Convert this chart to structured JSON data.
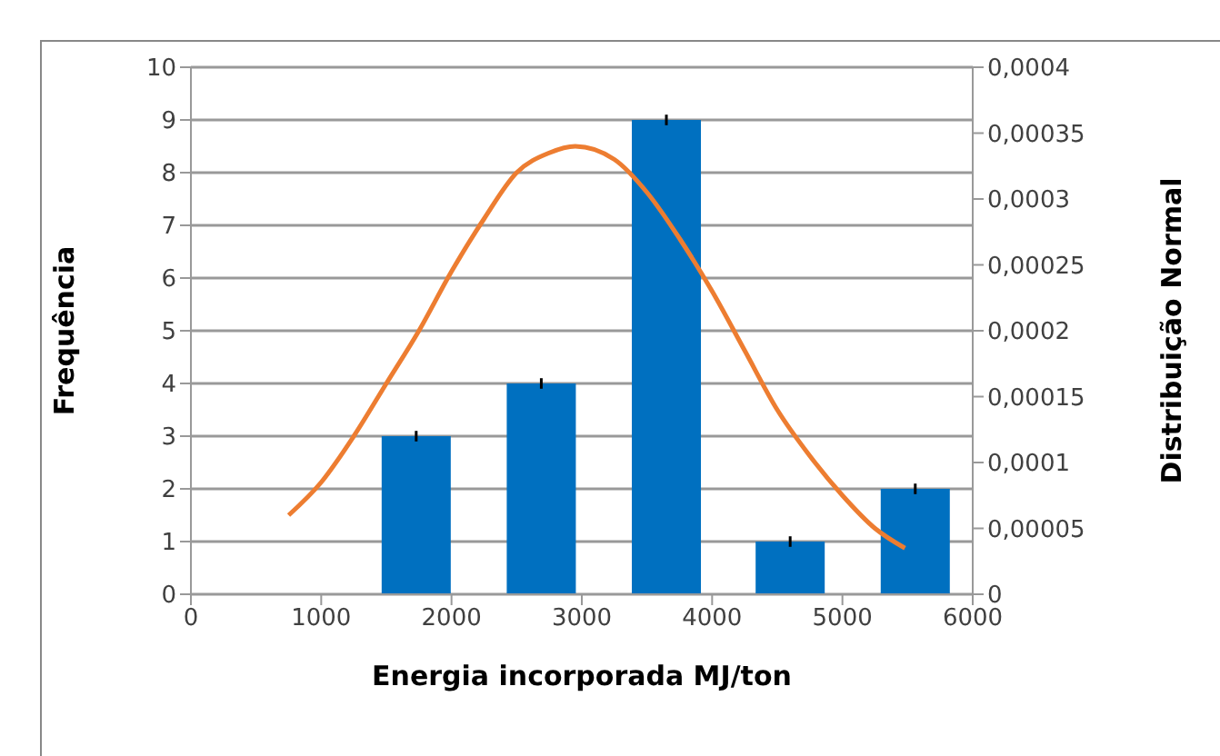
{
  "chart_data": {
    "type": "bar",
    "xlabel": "Energia incorporada MJ/ton",
    "ylabel": "Frequência",
    "y2label": "Distribuição Normal",
    "xlim": [
      0,
      6000
    ],
    "xticks": [
      0,
      1000,
      2000,
      3000,
      4000,
      5000,
      6000
    ],
    "ylim": [
      0,
      10
    ],
    "yticks": [
      0,
      1,
      2,
      3,
      4,
      5,
      6,
      7,
      8,
      9,
      10
    ],
    "y2lim": [
      0,
      0.0004
    ],
    "y2ticks": [
      {
        "value": 0,
        "label": "0"
      },
      {
        "value": 5e-05,
        "label": "0,00005"
      },
      {
        "value": 0.0001,
        "label": "0,0001"
      },
      {
        "value": 0.00015,
        "label": "0,00015"
      },
      {
        "value": 0.0002,
        "label": "0,0002"
      },
      {
        "value": 0.00025,
        "label": "0,00025"
      },
      {
        "value": 0.0003,
        "label": "0,0003"
      },
      {
        "value": 0.00035,
        "label": "0,00035"
      },
      {
        "value": 0.0004,
        "label": "0,0004"
      }
    ],
    "grid": "y",
    "marker": "none",
    "line_style": "solid",
    "series": [
      {
        "color": "#0070c0",
        "x": [
          1730,
          2690,
          3650,
          4600,
          5560
        ],
        "values": [
          3,
          4,
          9,
          1,
          2
        ],
        "errors": [
          0.1,
          0.1,
          0.1,
          0.1,
          0.1
        ]
      },
      {
        "type": "line",
        "axis": "y2",
        "color": "#ed7d31",
        "x": [
          750,
          1000,
          1250,
          1500,
          1750,
          2000,
          2250,
          2500,
          2750,
          2950,
          3250,
          3500,
          3750,
          4000,
          4250,
          4500,
          4750,
          5000,
          5250,
          5480
        ],
        "values": [
          6e-05,
          8.5e-05,
          0.00012,
          0.00016,
          0.0002,
          0.000245,
          0.000285,
          0.00032,
          0.000335,
          0.00034,
          0.00033,
          0.000305,
          0.00027,
          0.00023,
          0.000185,
          0.00014,
          0.000105,
          7.5e-05,
          5e-05,
          3.5e-05
        ]
      }
    ]
  }
}
